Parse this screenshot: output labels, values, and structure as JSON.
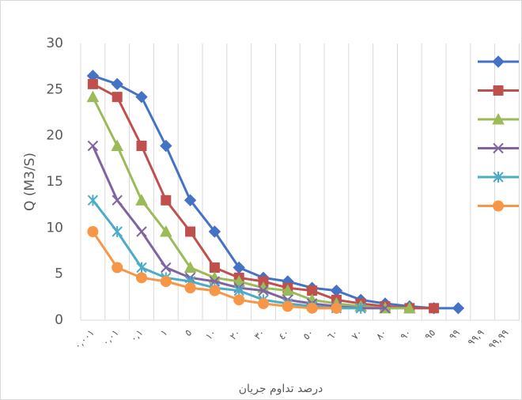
{
  "chart_data": {
    "type": "line",
    "y_label": "Q (M3/S)",
    "x_label": "درصد تداوم جریان",
    "categories": [
      "٠,٠٠١",
      "٠,٠١",
      "٠,١",
      "١",
      "٥",
      "١٠",
      "٢٠",
      "٣٠",
      "٤٠",
      "٥٠",
      "٦٠",
      "٧٠",
      "٨٠",
      "٩٠",
      "٩٥",
      "٩٩",
      "٩٩,٩",
      "٩٩,٩٩"
    ],
    "series": [
      {
        "color": "#4472c4",
        "marker": "diamond",
        "values": [
          26.5,
          25.6,
          24.2,
          18.9,
          13,
          9.6,
          5.7,
          4.6,
          4.2,
          3.5,
          3.2,
          2.2,
          1.8,
          1.5,
          1.3,
          1.3,
          null,
          null
        ]
      },
      {
        "color": "#c0504d",
        "marker": "square",
        "values": [
          25.6,
          24.2,
          18.9,
          13,
          9.6,
          5.7,
          4.6,
          4.2,
          3.5,
          3.2,
          2.2,
          1.8,
          1.5,
          1.3,
          1.3,
          null,
          null,
          null
        ]
      },
      {
        "color": "#9bbb59",
        "marker": "triangle",
        "values": [
          24.2,
          18.9,
          13,
          9.6,
          5.7,
          4.6,
          4.2,
          3.5,
          3.2,
          2.2,
          1.8,
          1.5,
          1.3,
          1.3,
          null,
          null,
          null,
          null
        ]
      },
      {
        "color": "#8064a2",
        "marker": "x",
        "values": [
          18.9,
          13,
          9.6,
          5.7,
          4.6,
          4.2,
          3.5,
          3.2,
          2.2,
          1.8,
          1.5,
          1.3,
          1.3,
          null,
          null,
          null,
          null,
          null
        ]
      },
      {
        "color": "#4bacc6",
        "marker": "star",
        "values": [
          13,
          9.6,
          5.7,
          4.6,
          4.2,
          3.5,
          3.2,
          2.2,
          1.8,
          1.5,
          1.3,
          1.3,
          null,
          null,
          null,
          null,
          null,
          null
        ]
      },
      {
        "color": "#f79646",
        "marker": "circle",
        "values": [
          9.6,
          5.7,
          4.6,
          4.2,
          3.5,
          3.2,
          2.2,
          1.8,
          1.5,
          1.3,
          1.3,
          null,
          null,
          null,
          null,
          null,
          null,
          null
        ]
      }
    ],
    "ylim": [
      0,
      30
    ],
    "yticks": [
      0,
      5,
      10,
      15,
      20,
      25,
      30
    ],
    "grid": "x"
  }
}
